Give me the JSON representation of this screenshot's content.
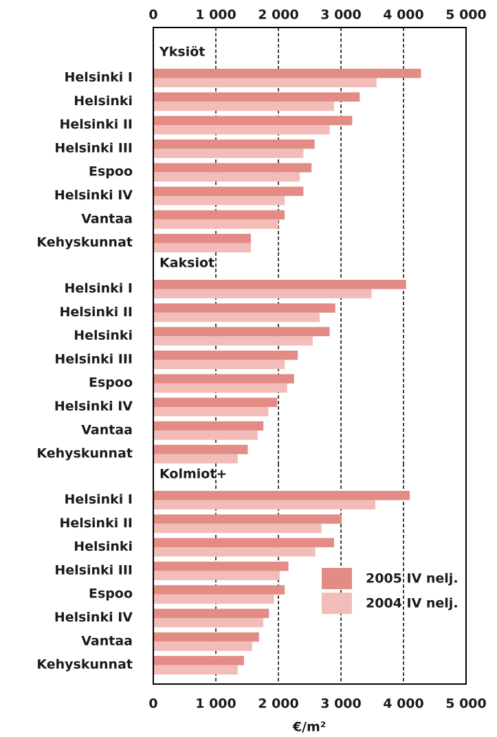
{
  "chart_data": [
    {
      "type": "bar",
      "orientation": "horizontal",
      "title": "Yksiöt",
      "categories": [
        "Helsinki I",
        "Helsinki",
        "Helsinki II",
        "Helsinki III",
        "Espoo",
        "Helsinki IV",
        "Vantaa",
        "Kehyskunnat"
      ],
      "series": [
        {
          "name": "2005 IV nelj.",
          "color": "#e38b85",
          "values": [
            4280,
            3300,
            3180,
            2580,
            2530,
            2400,
            2100,
            1560
          ]
        },
        {
          "name": "2004 IV nelj.",
          "color": "#f2bdb8",
          "values": [
            3570,
            2890,
            2820,
            2400,
            2340,
            2100,
            2000,
            1560
          ]
        }
      ],
      "xlim": [
        0,
        5000
      ],
      "xticks": [
        0,
        {
          "value": 1000,
          "label": "1 000"
        },
        {
          "value": 2000,
          "label": "2 000"
        },
        {
          "value": 3000,
          "label": "3 000"
        },
        {
          "value": 4000,
          "label": "4 000"
        },
        {
          "value": 5000,
          "label": "5 000"
        }
      ],
      "grid": true
    },
    {
      "type": "bar",
      "orientation": "horizontal",
      "title": "Kaksiot",
      "categories": [
        "Helsinki I",
        "Helsinki II",
        "Helsinki",
        "Helsinki III",
        "Espoo",
        "Helsinki IV",
        "Vantaa",
        "Kehyskunnat"
      ],
      "series": [
        {
          "name": "2005 IV nelj.",
          "color": "#e38b85",
          "values": [
            4040,
            2910,
            2820,
            2310,
            2250,
            1980,
            1760,
            1510
          ]
        },
        {
          "name": "2004 IV nelj.",
          "color": "#f2bdb8",
          "values": [
            3490,
            2660,
            2550,
            2100,
            2140,
            1840,
            1670,
            1350
          ]
        }
      ],
      "xlim": [
        0,
        5000
      ],
      "xticks": [
        0,
        {
          "value": 1000,
          "label": "1 000"
        },
        {
          "value": 2000,
          "label": "2 000"
        },
        {
          "value": 3000,
          "label": "3 000"
        },
        {
          "value": 4000,
          "label": "4 000"
        },
        {
          "value": 5000,
          "label": "5 000"
        }
      ],
      "grid": true
    },
    {
      "type": "bar",
      "orientation": "horizontal",
      "title": "Kolmiot+",
      "categories": [
        "Helsinki I",
        "Helsinki II",
        "Helsinki",
        "Helsinki III",
        "Espoo",
        "Helsinki IV",
        "Vantaa",
        "Kehyskunnat"
      ],
      "series": [
        {
          "name": "2005 IV nelj.",
          "color": "#e38b85",
          "values": [
            4100,
            3010,
            2890,
            2160,
            2100,
            1850,
            1690,
            1450
          ]
        },
        {
          "name": "2004 IV nelj.",
          "color": "#f2bdb8",
          "values": [
            3550,
            2690,
            2590,
            2020,
            1930,
            1760,
            1580,
            1350
          ]
        }
      ],
      "xlim": [
        0,
        5000
      ],
      "xticks": [
        0,
        {
          "value": 1000,
          "label": "1 000"
        },
        {
          "value": 2000,
          "label": "2 000"
        },
        {
          "value": 3000,
          "label": "3 000"
        },
        {
          "value": 4000,
          "label": "4 000"
        },
        {
          "value": 5000,
          "label": "5 000"
        }
      ],
      "xlabel": "€/m²",
      "grid": true,
      "legend": "lower right"
    }
  ]
}
